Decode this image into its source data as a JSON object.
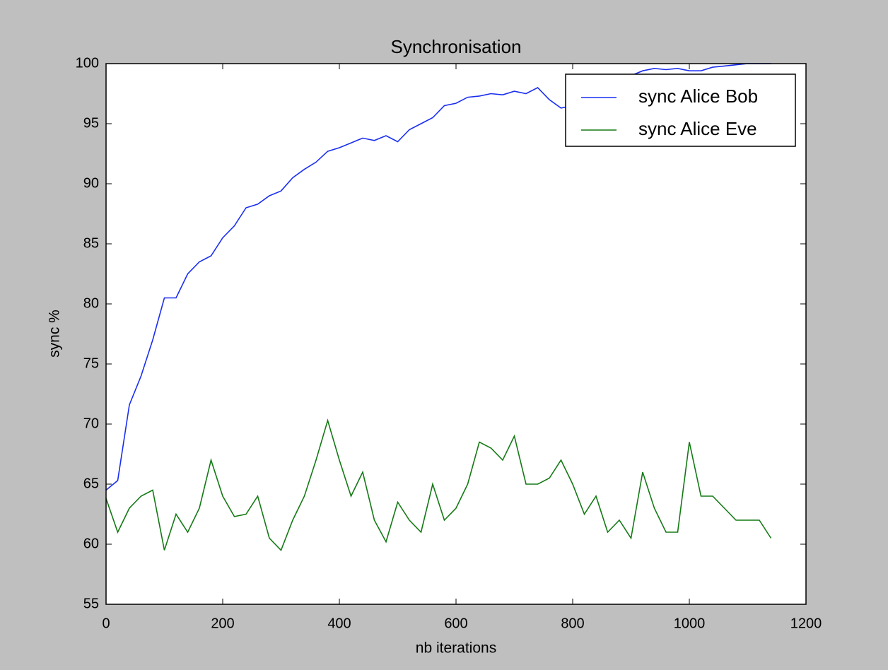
{
  "chart_data": {
    "type": "line",
    "title": "Synchronisation",
    "x_label": "nb iterations",
    "y_label": "sync %",
    "x": [
      0,
      20,
      40,
      60,
      80,
      100,
      120,
      140,
      160,
      180,
      200,
      220,
      240,
      260,
      280,
      300,
      320,
      340,
      360,
      380,
      400,
      420,
      440,
      460,
      480,
      500,
      520,
      540,
      560,
      580,
      600,
      620,
      640,
      660,
      680,
      700,
      720,
      740,
      760,
      780,
      800,
      820,
      840,
      860,
      880,
      900,
      920,
      940,
      960,
      980,
      1000,
      1020,
      1040,
      1060,
      1080,
      1100,
      1120,
      1140
    ],
    "series": [
      {
        "name": "sync Alice Bob",
        "color": "#1a2ef0",
        "values": [
          64.5,
          65.3,
          71.6,
          74,
          77,
          80.5,
          80.5,
          82.5,
          83.5,
          84,
          85.5,
          86.5,
          88,
          88.3,
          89,
          89.4,
          90.5,
          91.2,
          91.8,
          92.7,
          93,
          93.4,
          93.8,
          93.6,
          94,
          93.5,
          94.5,
          95,
          95.5,
          96.5,
          96.7,
          97.2,
          97.3,
          97.5,
          97.4,
          97.7,
          97.5,
          98,
          97,
          96.3,
          96.5,
          97,
          97.5,
          98,
          98.5,
          99,
          99.4,
          99.6,
          99.5,
          99.6,
          99.4,
          99.4,
          99.7,
          99.8,
          99.9,
          100,
          100,
          100
        ]
      },
      {
        "name": "sync Alice Eve",
        "color": "#157a15",
        "values": [
          63.8,
          61,
          63,
          64,
          64.5,
          59.5,
          62.5,
          61,
          63,
          67,
          64,
          62.3,
          62.5,
          64,
          60.5,
          59.5,
          62,
          64,
          67,
          70.3,
          67,
          64,
          66,
          62,
          60.2,
          63.5,
          62,
          61,
          65,
          62,
          63,
          65,
          68.5,
          68,
          67,
          69,
          65,
          65,
          65.5,
          67,
          65,
          62.5,
          64,
          61,
          62,
          60.5,
          66,
          63,
          61,
          61,
          68.5,
          64,
          64,
          63,
          62,
          62,
          62,
          60.5
        ]
      }
    ],
    "xlim": [
      0,
      1200
    ],
    "xticks": [
      0,
      200,
      400,
      600,
      800,
      1000,
      1200
    ],
    "ylim": [
      55,
      100
    ],
    "yticks": [
      55,
      60,
      65,
      70,
      75,
      80,
      85,
      90,
      95,
      100
    ],
    "legend": "upper right"
  }
}
